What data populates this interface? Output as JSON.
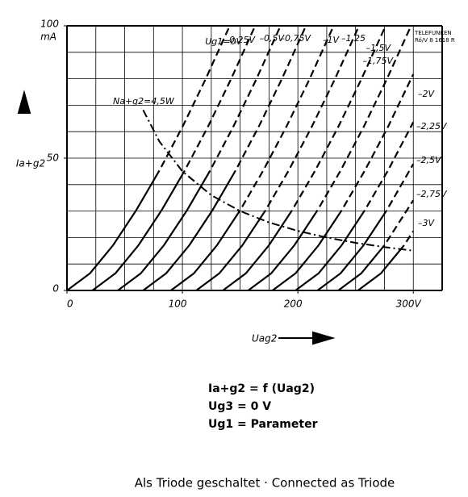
{
  "chart_data": {
    "type": "line",
    "y_unit": "mA",
    "ylabel": "Ia+g2",
    "xlabel": "Uag2",
    "maker": "TELEFUNKEN",
    "code": "Rö/V 8 1618 R",
    "xlim": [
      0,
      325
    ],
    "ylim": [
      0,
      100
    ],
    "xticks": [
      0,
      100,
      200,
      {
        "value": 300,
        "label": "300V"
      }
    ],
    "yticks": [
      0,
      50,
      100
    ],
    "xgrid": [
      0,
      25,
      50,
      75,
      100,
      125,
      150,
      175,
      200,
      225,
      250,
      275,
      300,
      325
    ],
    "ygrid": [
      0,
      10,
      20,
      30,
      40,
      50,
      60,
      70,
      80,
      90,
      100
    ],
    "color": "#000000",
    "series": [
      {
        "name": "Ug1=0V",
        "x": [
          0,
          20,
          40,
          60,
          80,
          100,
          120,
          141
        ],
        "values": [
          0,
          6.5,
          17.1,
          30.3,
          45.3,
          61.8,
          79.8,
          100
        ],
        "dash_from": 4
      },
      {
        "name": "–0,25V",
        "x": [
          22,
          42,
          62,
          82,
          102,
          122,
          142,
          163
        ],
        "values": [
          0,
          6.5,
          17.1,
          30.3,
          45.3,
          61.8,
          79.8,
          100
        ],
        "dash_from": 4
      },
      {
        "name": "–0,5V",
        "x": [
          44,
          64,
          84,
          104,
          124,
          144,
          164,
          185
        ],
        "values": [
          0,
          6.5,
          17.1,
          30.3,
          45.3,
          61.8,
          79.8,
          100
        ],
        "dash_from": 4
      },
      {
        "name": "–0,75V",
        "x": [
          66,
          86,
          106,
          126,
          146,
          166,
          186,
          207
        ],
        "values": [
          0,
          6.5,
          17.1,
          30.3,
          45.3,
          61.8,
          79.8,
          100
        ],
        "dash_from": 4
      },
      {
        "name": "–1V",
        "x": [
          90,
          110,
          130,
          150,
          170,
          190,
          210,
          231
        ],
        "values": [
          0,
          6.5,
          17.1,
          30.3,
          45.3,
          61.8,
          79.8,
          100
        ],
        "dash_from": 3
      },
      {
        "name": "–1,25",
        "x": [
          112,
          132,
          152,
          172,
          192,
          212,
          232,
          253
        ],
        "values": [
          0,
          6.5,
          17.1,
          30.3,
          45.3,
          61.8,
          79.8,
          100
        ],
        "dash_from": 3
      },
      {
        "name": "–1,5V",
        "x": [
          135,
          155,
          175,
          195,
          215,
          235,
          255,
          276
        ],
        "values": [
          0,
          6.5,
          17.1,
          30.3,
          45.3,
          61.8,
          79.8,
          100
        ],
        "dash_from": 3
      },
      {
        "name": "–1,75V",
        "x": [
          157,
          177,
          197,
          217,
          237,
          257,
          277,
          298
        ],
        "values": [
          0,
          6.5,
          17.1,
          30.3,
          45.3,
          61.8,
          79.8,
          100
        ],
        "dash_from": 3
      },
      {
        "name": "–2V",
        "x": [
          178,
          198,
          218,
          238,
          258,
          278,
          300
        ],
        "values": [
          0,
          6.5,
          17.1,
          30.3,
          45.3,
          61.8,
          81.7
        ],
        "dash_from": 3
      },
      {
        "name": "–2,25V",
        "x": [
          198,
          218,
          238,
          258,
          278,
          300
        ],
        "values": [
          0,
          6.5,
          17.1,
          30.3,
          45.3,
          63.6
        ],
        "dash_from": 3
      },
      {
        "name": "–2,5V",
        "x": [
          217,
          237,
          257,
          277,
          300
        ],
        "values": [
          0,
          6.5,
          17.1,
          30.3,
          47.8
        ],
        "dash_from": 3
      },
      {
        "name": "–2,75V",
        "x": [
          235,
          255,
          275,
          300
        ],
        "values": [
          0,
          6.5,
          17.1,
          34.1
        ],
        "dash_from": 2
      },
      {
        "name": "–3V",
        "x": [
          252,
          272,
          292,
          300
        ],
        "values": [
          0,
          6.5,
          17.1,
          22.4
        ],
        "dash_from": 2
      }
    ],
    "dissipation": {
      "name": "Na+g2=4,5W",
      "x": [
        66,
        80,
        100,
        125,
        150,
        175,
        200,
        225,
        250,
        275,
        300
      ],
      "values": [
        68.2,
        56.3,
        45,
        36,
        30,
        25.7,
        22.5,
        20,
        18,
        16.4,
        15
      ]
    }
  },
  "formulas": [
    "Ia+g2 = f (Uag2)",
    "Ug3 = 0 V",
    "Ug1 = Parameter"
  ],
  "footer": "Als Triode geschaltet · Connected as Triode"
}
